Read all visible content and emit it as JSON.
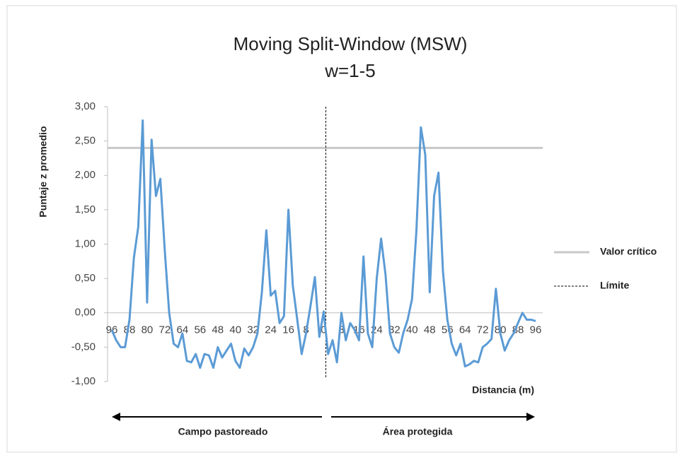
{
  "chart_data": {
    "type": "line",
    "title": "Moving Split-Window (MSW)",
    "subtitle": "w=1-5",
    "y_label": "Puntaje z promedio",
    "x_label": "Distancia (m)",
    "annotations": [
      "Campo pastoreado",
      "Área protegida"
    ],
    "categories": [
      "96",
      null,
      null,
      null,
      "88",
      null,
      null,
      null,
      "80",
      null,
      null,
      null,
      "72",
      null,
      null,
      null,
      "64",
      null,
      null,
      null,
      "56",
      null,
      null,
      null,
      "48",
      null,
      null,
      null,
      "40",
      null,
      null,
      null,
      "32",
      null,
      null,
      null,
      "24",
      null,
      null,
      null,
      "16",
      null,
      null,
      null,
      "8",
      null,
      null,
      null,
      "0",
      null,
      null,
      null,
      "8",
      null,
      null,
      null,
      "16",
      null,
      null,
      null,
      "24",
      null,
      null,
      null,
      "32",
      null,
      null,
      null,
      "40",
      null,
      null,
      null,
      "48",
      null,
      null,
      null,
      "56",
      null,
      null,
      null,
      "64",
      null,
      null,
      null,
      "72",
      null,
      null,
      null,
      "80",
      null,
      null,
      null,
      "88",
      null,
      null,
      null,
      "96"
    ],
    "series": [
      {
        "name": "MSW",
        "color": "#5b9bd5",
        "values": [
          -0.25,
          -0.4,
          -0.5,
          -0.5,
          -0.1,
          0.8,
          1.25,
          2.8,
          0.15,
          2.52,
          1.7,
          1.95,
          0.9,
          0,
          -0.45,
          -0.5,
          -0.3,
          -0.7,
          -0.72,
          -0.6,
          -0.8,
          -0.6,
          -0.62,
          -0.8,
          -0.5,
          -0.65,
          -0.55,
          -0.45,
          -0.7,
          -0.8,
          -0.52,
          -0.62,
          -0.5,
          -0.3,
          0.3,
          1.2,
          0.25,
          0.32,
          -0.15,
          -0.05,
          1.5,
          0.4,
          -0.1,
          -0.6,
          -0.3,
          0.1,
          0.52,
          -0.35,
          0.02,
          -0.6,
          -0.4,
          -0.72,
          0,
          -0.4,
          -0.15,
          -0.25,
          -0.4,
          0.82,
          -0.3,
          -0.5,
          0.5,
          1.08,
          0.55,
          -0.3,
          -0.5,
          -0.58,
          -0.3,
          -0.1,
          0.2,
          1.2,
          2.7,
          2.3,
          0.3,
          1.7,
          2.04,
          0.6,
          -0.1,
          -0.45,
          -0.62,
          -0.45,
          -0.78,
          -0.75,
          -0.7,
          -0.72,
          -0.5,
          -0.45,
          -0.38,
          0.35,
          -0.3,
          -0.55,
          -0.4,
          -0.3,
          -0.15,
          0,
          -0.1,
          -0.1,
          -0.12
        ]
      }
    ],
    "reference_line": {
      "name": "Valor crítico",
      "value": 2.4,
      "color": "#c8c8c8"
    },
    "limit_line": {
      "name": "Límite",
      "category": "0"
    },
    "ylim": [
      -1,
      3
    ],
    "yticks": [
      {
        "value": 3,
        "label": "3,00"
      },
      {
        "value": 2.5,
        "label": "2,50"
      },
      {
        "value": 2,
        "label": "2,00"
      },
      {
        "value": 1.5,
        "label": "1,50"
      },
      {
        "value": 1,
        "label": "1,00"
      },
      {
        "value": 0.5,
        "label": "0,50"
      },
      {
        "value": 0,
        "label": "0,00"
      },
      {
        "value": -0.5,
        "label": "-0,50"
      },
      {
        "value": -1,
        "label": "-1,00"
      }
    ],
    "legend": "right"
  }
}
